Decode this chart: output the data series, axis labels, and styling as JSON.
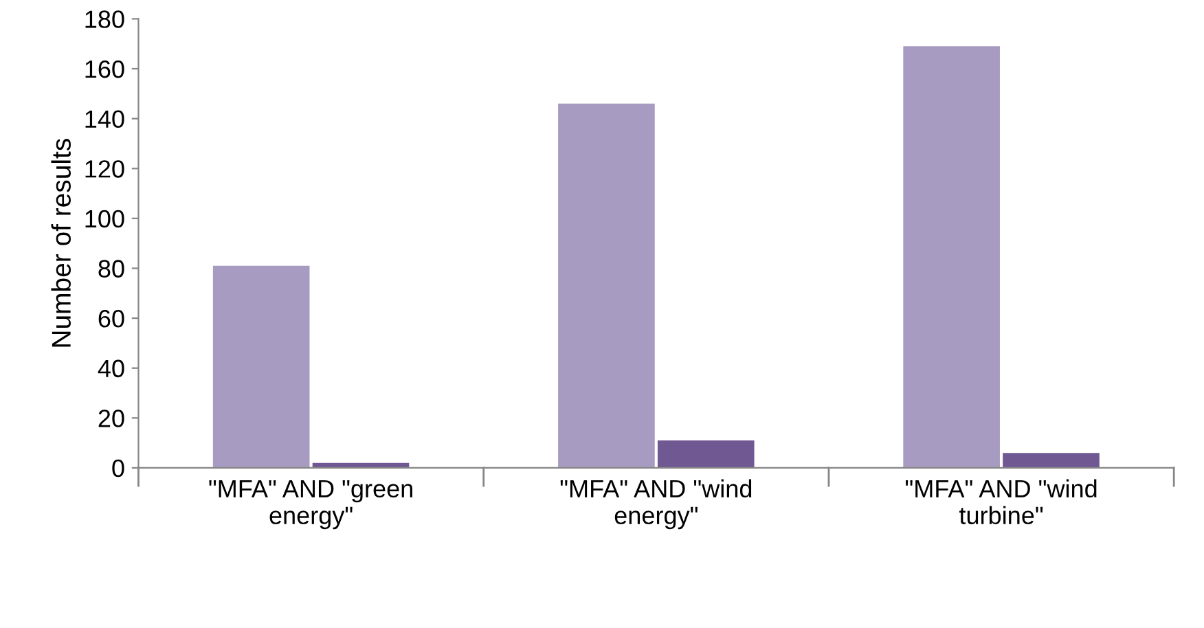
{
  "chart_data": {
    "type": "bar",
    "ylabel": "Number of results",
    "categories": [
      "\"MFA\" AND \"green\nenergy\"",
      "\"MFA\" AND \"wind\nenergy\"",
      "\"MFA\" AND \"wind\nturbine\""
    ],
    "series": [
      {
        "color": "#a89bc2",
        "values": [
          81,
          146,
          169
        ]
      },
      {
        "color": "#705892",
        "values": [
          2,
          11,
          6
        ]
      }
    ],
    "ylim": [
      0,
      180
    ],
    "yticks": [
      0,
      20,
      40,
      60,
      80,
      100,
      120,
      140,
      160,
      180
    ],
    "grid": false
  }
}
